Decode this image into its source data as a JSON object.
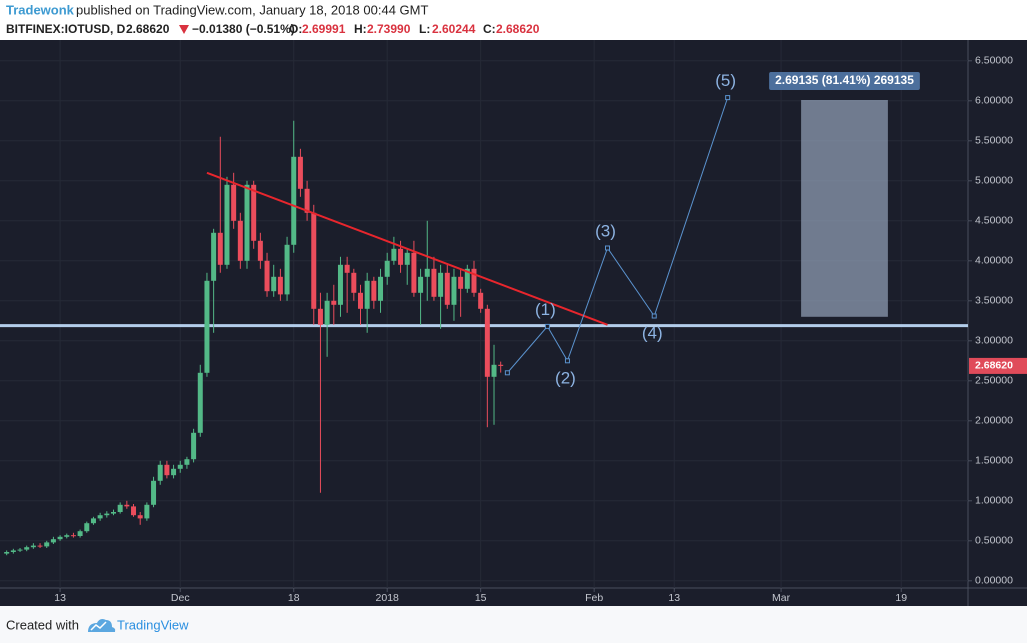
{
  "header": {
    "author": "Tradewonk",
    "published": "published on TradingView.com, January 18, 2018 00:44 GMT",
    "symbol": "BITFINEX:IOTUSD, D",
    "price": "2.68620",
    "change": "−0.01380 (−0.51%)",
    "ohlc": [
      {
        "key": "O:",
        "value": "2.69991"
      },
      {
        "key": "H:",
        "value": "2.73990"
      },
      {
        "key": "L:",
        "value": "2.60244"
      },
      {
        "key": "C:",
        "value": "2.68620"
      }
    ]
  },
  "footer": {
    "created": "Created with",
    "brand": "TradingView"
  },
  "chart_data": {
    "type": "candlestick",
    "up_color": "#53b987",
    "down_color": "#eb4d5c",
    "x": [
      "2017-11-05",
      "2017-11-06",
      "2017-11-07",
      "2017-11-08",
      "2017-11-09",
      "2017-11-10",
      "2017-11-11",
      "2017-11-12",
      "2017-11-13",
      "2017-11-14",
      "2017-11-15",
      "2017-11-16",
      "2017-11-17",
      "2017-11-18",
      "2017-11-19",
      "2017-11-20",
      "2017-11-21",
      "2017-11-22",
      "2017-11-23",
      "2017-11-24",
      "2017-11-25",
      "2017-11-26",
      "2017-11-27",
      "2017-11-28",
      "2017-11-29",
      "2017-11-30",
      "2017-12-01",
      "2017-12-02",
      "2017-12-03",
      "2017-12-04",
      "2017-12-05",
      "2017-12-06",
      "2017-12-07",
      "2017-12-08",
      "2017-12-09",
      "2017-12-10",
      "2017-12-11",
      "2017-12-12",
      "2017-12-13",
      "2017-12-14",
      "2017-12-15",
      "2017-12-16",
      "2017-12-17",
      "2017-12-18",
      "2017-12-19",
      "2017-12-20",
      "2017-12-21",
      "2017-12-22",
      "2017-12-23",
      "2017-12-24",
      "2017-12-25",
      "2017-12-26",
      "2017-12-27",
      "2017-12-28",
      "2017-12-29",
      "2017-12-30",
      "2017-12-31",
      "2018-01-01",
      "2018-01-02",
      "2018-01-03",
      "2018-01-04",
      "2018-01-05",
      "2018-01-06",
      "2018-01-07",
      "2018-01-08",
      "2018-01-09",
      "2018-01-10",
      "2018-01-11",
      "2018-01-12",
      "2018-01-13",
      "2018-01-14",
      "2018-01-15",
      "2018-01-16",
      "2018-01-17",
      "2018-01-18"
    ],
    "open": [
      0.34,
      0.36,
      0.38,
      0.39,
      0.42,
      0.44,
      0.43,
      0.48,
      0.52,
      0.55,
      0.57,
      0.56,
      0.62,
      0.72,
      0.78,
      0.82,
      0.84,
      0.86,
      0.95,
      0.93,
      0.82,
      0.78,
      0.95,
      1.25,
      1.45,
      1.32,
      1.4,
      1.45,
      1.52,
      1.85,
      2.6,
      3.75,
      4.35,
      3.95,
      4.95,
      4.5,
      4.0,
      4.95,
      4.25,
      4.0,
      3.62,
      3.8,
      3.58,
      4.2,
      5.3,
      4.9,
      4.6,
      3.4,
      3.2,
      3.5,
      3.45,
      3.95,
      3.85,
      3.6,
      3.4,
      3.75,
      3.5,
      3.8,
      4.0,
      4.15,
      3.95,
      4.1,
      3.6,
      3.8,
      3.9,
      3.55,
      3.85,
      3.45,
      3.8,
      3.65,
      3.9,
      3.6,
      3.4,
      2.55,
      2.69991
    ],
    "high": [
      0.38,
      0.4,
      0.41,
      0.44,
      0.47,
      0.47,
      0.5,
      0.55,
      0.57,
      0.59,
      0.6,
      0.64,
      0.74,
      0.8,
      0.85,
      0.87,
      0.89,
      0.98,
      1.0,
      0.96,
      0.86,
      0.98,
      1.3,
      1.5,
      1.5,
      1.45,
      1.5,
      1.55,
      1.9,
      2.7,
      3.85,
      4.4,
      5.55,
      5.05,
      5.1,
      4.6,
      5.0,
      5.0,
      4.35,
      4.1,
      3.95,
      3.9,
      4.3,
      5.75,
      5.4,
      5.0,
      4.7,
      3.6,
      3.6,
      3.7,
      4.05,
      4.05,
      3.9,
      3.7,
      3.85,
      3.8,
      3.9,
      4.1,
      4.3,
      4.25,
      4.15,
      4.25,
      3.9,
      4.5,
      4.05,
      3.95,
      3.95,
      3.9,
      3.9,
      3.95,
      4.0,
      3.65,
      3.45,
      2.95,
      2.7399
    ],
    "low": [
      0.32,
      0.34,
      0.36,
      0.37,
      0.4,
      0.41,
      0.41,
      0.46,
      0.5,
      0.53,
      0.54,
      0.54,
      0.6,
      0.7,
      0.75,
      0.79,
      0.82,
      0.84,
      0.9,
      0.8,
      0.7,
      0.75,
      0.92,
      1.2,
      1.28,
      1.28,
      1.35,
      1.4,
      1.48,
      1.8,
      2.55,
      3.1,
      3.85,
      3.9,
      4.4,
      3.9,
      3.9,
      4.15,
      3.9,
      3.55,
      3.55,
      3.5,
      3.5,
      4.1,
      4.8,
      4.5,
      3.2,
      1.1,
      2.8,
      3.2,
      3.3,
      3.35,
      3.5,
      3.2,
      3.1,
      3.4,
      3.35,
      3.7,
      3.95,
      3.85,
      3.7,
      3.55,
      3.2,
      3.5,
      3.5,
      3.15,
      3.4,
      3.25,
      3.3,
      3.6,
      3.55,
      3.35,
      1.92,
      1.95,
      2.60244
    ],
    "close": [
      0.36,
      0.38,
      0.39,
      0.42,
      0.44,
      0.43,
      0.48,
      0.52,
      0.55,
      0.57,
      0.56,
      0.62,
      0.72,
      0.78,
      0.82,
      0.84,
      0.86,
      0.95,
      0.93,
      0.82,
      0.78,
      0.95,
      1.25,
      1.45,
      1.32,
      1.4,
      1.45,
      1.52,
      1.85,
      2.6,
      3.75,
      4.35,
      3.95,
      4.95,
      4.5,
      4.0,
      4.95,
      4.25,
      4.0,
      3.62,
      3.8,
      3.58,
      4.2,
      5.3,
      4.9,
      4.6,
      3.4,
      3.2,
      3.5,
      3.45,
      3.95,
      3.85,
      3.6,
      3.4,
      3.75,
      3.5,
      3.8,
      4.0,
      4.15,
      3.95,
      4.1,
      3.6,
      3.8,
      3.9,
      3.55,
      3.85,
      3.45,
      3.8,
      3.65,
      3.9,
      3.6,
      3.4,
      2.55,
      2.7,
      2.6862
    ],
    "xlim": [
      "2017-11-04",
      "2018-03-29"
    ],
    "xticks": [
      {
        "value": "2017-11-13",
        "label": "13"
      },
      {
        "value": "2017-12-01",
        "label": "Dec"
      },
      {
        "value": "2017-12-18",
        "label": "18"
      },
      {
        "value": "2018-01-01",
        "label": "2018"
      },
      {
        "value": "2018-01-15",
        "label": "15"
      },
      {
        "value": "2018-02-01",
        "label": "Feb"
      },
      {
        "value": "2018-02-13",
        "label": "13"
      },
      {
        "value": "2018-03-01",
        "label": "Mar"
      },
      {
        "value": "2018-03-19",
        "label": "19"
      }
    ],
    "ylim": [
      -0.09,
      6.76
    ],
    "yticks": [
      {
        "value": 0,
        "label": "0.00000"
      },
      {
        "value": 0.5,
        "label": "0.50000"
      },
      {
        "value": 1,
        "label": "1.00000"
      },
      {
        "value": 1.5,
        "label": "1.50000"
      },
      {
        "value": 2,
        "label": "2.00000"
      },
      {
        "value": 2.5,
        "label": "2.50000"
      },
      {
        "value": 3,
        "label": "3.00000"
      },
      {
        "value": 3.5,
        "label": "3.50000"
      },
      {
        "value": 4,
        "label": "4.00000"
      },
      {
        "value": 4.5,
        "label": "4.50000"
      },
      {
        "value": 5,
        "label": "5.00000"
      },
      {
        "value": 5.5,
        "label": "5.50000"
      },
      {
        "value": 6,
        "label": "6.00000"
      },
      {
        "value": 6.5,
        "label": "6.50000"
      }
    ],
    "grid": true,
    "annotations": {
      "trendline": {
        "color": "#e8262d",
        "x": [
          "2017-12-05",
          "2018-02-03"
        ],
        "y": [
          5.1,
          3.2
        ]
      },
      "level": {
        "color": "#b3cdea",
        "y": 3.19
      },
      "wave": {
        "color": "#5b93cf",
        "x": [
          "2018-01-19",
          "2018-01-25",
          "2018-01-28",
          "2018-02-03",
          "2018-02-10",
          "2018-02-21"
        ],
        "y": [
          2.6,
          3.18,
          2.75,
          4.16,
          3.31,
          6.04
        ],
        "labels": [
          "(1)",
          "(2)",
          "(3)",
          "(4)",
          "(5)"
        ]
      },
      "box": {
        "x": [
          "2018-03-04",
          "2018-03-17"
        ],
        "y": [
          3.3,
          6.01
        ],
        "label": "2.69135 (81.41%) 269135"
      }
    }
  }
}
